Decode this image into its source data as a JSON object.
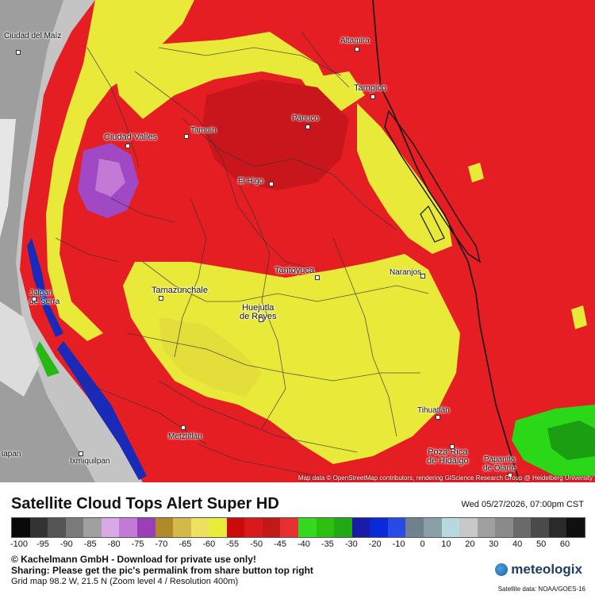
{
  "map": {
    "cities": [
      {
        "name": "Ciudad\ndel Maíz",
        "id": "ciudad-del-maiz"
      },
      {
        "name": "Altamira",
        "id": "altamira"
      },
      {
        "name": "Tampico",
        "id": "tampico"
      },
      {
        "name": "Pánuco",
        "id": "panuco"
      },
      {
        "name": "Ciudad Valles",
        "id": "ciudad-valles"
      },
      {
        "name": "Tamuín",
        "id": "tamuin"
      },
      {
        "name": "El Higo",
        "id": "el-higo"
      },
      {
        "name": "Tantoyuca",
        "id": "tantoyuca"
      },
      {
        "name": "Naranjos",
        "id": "naranjos"
      },
      {
        "name": "Tamazunchale",
        "id": "tamazunchale"
      },
      {
        "name": "Jalpan\nde Serra",
        "id": "jalpan-de-serra"
      },
      {
        "name": "Huejutla\nde Reyes",
        "id": "huejutla-de-reyes"
      },
      {
        "name": "Tihuatlán",
        "id": "tihuatlan"
      },
      {
        "name": "Metztitlán",
        "id": "metztitlan"
      },
      {
        "name": "Poza Rica\nde Hidalgo",
        "id": "poza-rica"
      },
      {
        "name": "Papantla\nde Olarte",
        "id": "papantla"
      },
      {
        "name": "Ixmiquilpan",
        "id": "ixmiquilpan"
      },
      {
        "name": "iapan",
        "id": "iapan"
      }
    ],
    "attribution": "Map data © OpenStreetMap contributors, rendering GIScience Research Group @ Heidelberg University"
  },
  "legend": {
    "title": "Satellite Cloud Tops Alert Super HD",
    "datetime": "Wed 05/27/2026, 07:00pm CST",
    "colors": [
      "#0a0a0a",
      "#333333",
      "#555555",
      "#7a7a7a",
      "#a0a0a0",
      "#d9a8e6",
      "#c27ad6",
      "#9a3fb5",
      "#b08a2a",
      "#d4b84a",
      "#f0e060",
      "#e8ed3a",
      "#cc0a0a",
      "#d81a1a",
      "#c21818",
      "#e83030",
      "#35d81e",
      "#2cc010",
      "#21a815",
      "#1a1aa8",
      "#0a2ad8",
      "#2a4ae8",
      "#708090",
      "#8aa0a8",
      "#b8d8e0",
      "#c8c8c8",
      "#a0a0a0",
      "#8a8a8a",
      "#6a6a6a",
      "#4a4a4a",
      "#2a2a2a",
      "#101010"
    ],
    "ticks": [
      "-100",
      "-95",
      "-90",
      "-85",
      "-80",
      "-75",
      "-70",
      "-65",
      "-60",
      "-55",
      "-50",
      "-45",
      "-40",
      "-35",
      "-30",
      "-20",
      "-10",
      "0",
      "10",
      "20",
      "30",
      "40",
      "50",
      "60"
    ],
    "copyright": "© Kachelmann GmbH - Download for private use only!",
    "sharing": "Sharing: Please get the pic's permalink from share button top right",
    "grid": "Grid map 98.2 W, 21.5 N (Zoom level 4 / Resolution 400m)",
    "logo": "meteologix",
    "satellite": "Satellite data: NOAA/GOES-16"
  }
}
